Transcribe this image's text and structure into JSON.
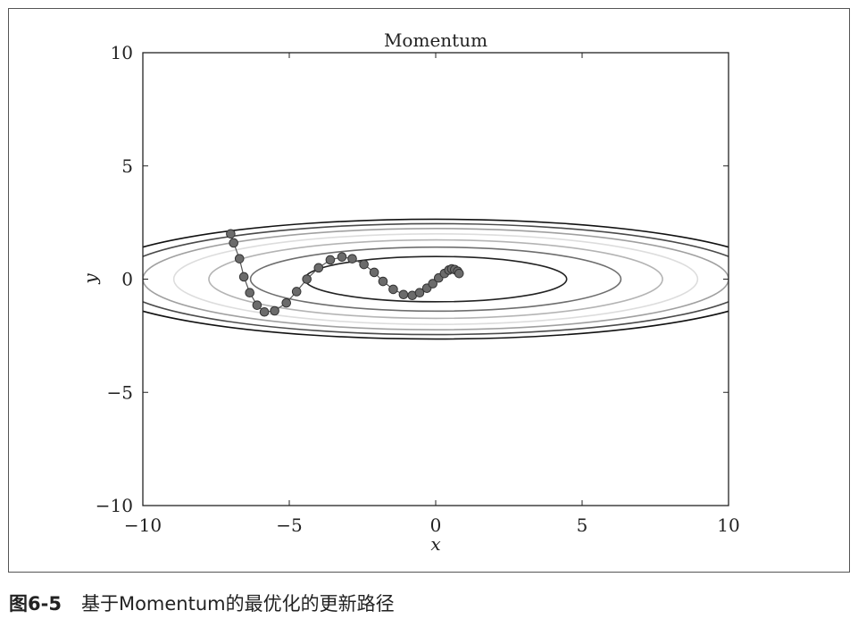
{
  "caption": {
    "figure_number": "图6-5",
    "text": "基于Momentum的最优化的更新路径"
  },
  "chart_data": {
    "type": "scatter",
    "title": "Momentum",
    "xlabel": "x",
    "ylabel": "y",
    "xlim": [
      -10,
      10
    ],
    "ylim": [
      -10,
      10
    ],
    "xticks": [
      -10,
      -5,
      0,
      5,
      10
    ],
    "yticks": [
      -10,
      -5,
      0,
      5,
      10
    ],
    "xtick_labels": [
      "−10",
      "−5",
      "0",
      "5",
      "10"
    ],
    "ytick_labels": [
      "−10",
      "−5",
      "0",
      "5",
      "10"
    ],
    "grid": false,
    "contour": {
      "function": "f(x,y) = x^2/20 + y^2",
      "levels": [
        1,
        2,
        3,
        4,
        5,
        6,
        7
      ],
      "colors": [
        "#222222",
        "#6e6e6e",
        "#b4b4b4",
        "#dddddd",
        "#a0a0a0",
        "#4a4a4a",
        "#111111"
      ]
    },
    "path": {
      "x": [
        -7.0,
        -6.9,
        -6.7,
        -6.55,
        -6.35,
        -6.1,
        -5.85,
        -5.5,
        -5.1,
        -4.75,
        -4.4,
        -4.0,
        -3.6,
        -3.2,
        -2.85,
        -2.45,
        -2.1,
        -1.8,
        -1.45,
        -1.1,
        -0.8,
        -0.55,
        -0.3,
        -0.1,
        0.1,
        0.3,
        0.45,
        0.55,
        0.65,
        0.75,
        0.8
      ],
      "y": [
        2.0,
        1.6,
        0.9,
        0.1,
        -0.6,
        -1.15,
        -1.45,
        -1.4,
        -1.05,
        -0.55,
        0.0,
        0.5,
        0.85,
        0.98,
        0.9,
        0.65,
        0.3,
        -0.1,
        -0.45,
        -0.68,
        -0.72,
        -0.6,
        -0.4,
        -0.2,
        0.05,
        0.25,
        0.4,
        0.45,
        0.42,
        0.35,
        0.25
      ],
      "marker_color": "#6b6b6b",
      "line_color": "#555555"
    }
  }
}
